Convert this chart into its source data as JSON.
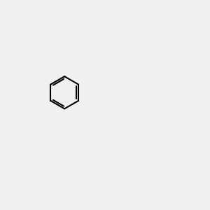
{
  "bg_color": "#f0f0f0",
  "bond_color": "#000000",
  "N_color": "#0000ff",
  "O_color": "#ff0000",
  "S_color": "#cccc00",
  "H_color": "#008888",
  "bond_width": 1.5,
  "font_size": 9
}
